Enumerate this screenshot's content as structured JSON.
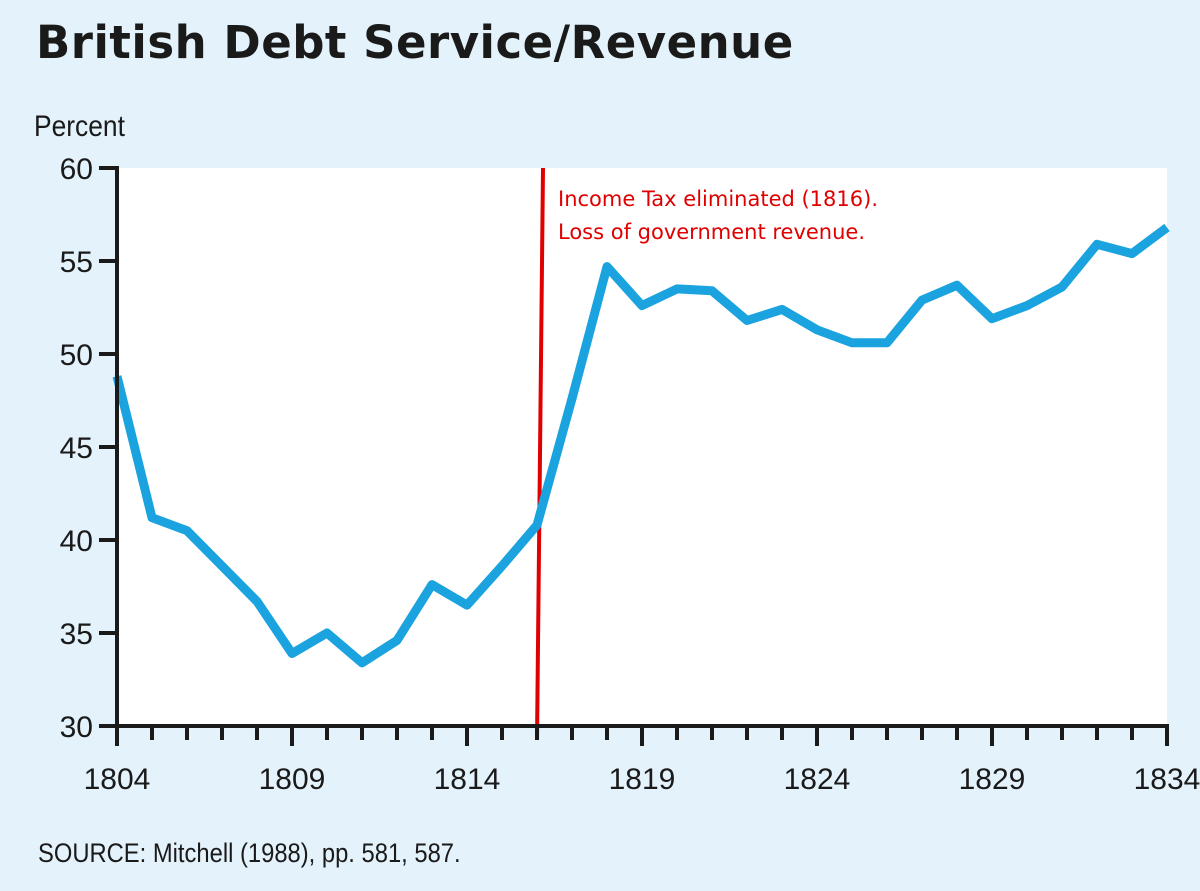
{
  "chart_data": {
    "type": "line",
    "title": "British Debt Service/Revenue",
    "ylabel": "Percent",
    "xlabel": "",
    "xlim": [
      1804,
      1834
    ],
    "ylim": [
      30,
      60
    ],
    "x_ticks": [
      1804,
      1809,
      1814,
      1819,
      1824,
      1829,
      1834
    ],
    "y_ticks": [
      30,
      35,
      40,
      45,
      50,
      55,
      60
    ],
    "grid": false,
    "series": [
      {
        "color": "#1aa3de",
        "x": [
          1804,
          1805,
          1806,
          1807,
          1808,
          1809,
          1810,
          1811,
          1812,
          1813,
          1814,
          1815,
          1816,
          1817,
          1818,
          1819,
          1820,
          1821,
          1822,
          1823,
          1824,
          1825,
          1826,
          1827,
          1828,
          1829,
          1830,
          1831,
          1832,
          1833,
          1834
        ],
        "values": [
          48.8,
          41.2,
          40.5,
          38.6,
          36.7,
          33.9,
          35.0,
          33.4,
          34.6,
          37.6,
          36.5,
          38.6,
          40.8,
          47.6,
          54.7,
          52.6,
          53.5,
          53.4,
          51.8,
          52.4,
          51.3,
          50.6,
          50.6,
          52.9,
          53.7,
          51.9,
          52.6,
          53.6,
          55.9,
          55.4,
          56.8
        ]
      }
    ],
    "annotation": {
      "x": 1816,
      "color": "#e00000",
      "lines": [
        "Income Tax eliminated (1816).",
        "Loss of government revenue."
      ]
    },
    "source": "SOURCE: Mitchell (1988), pp. 581, 587."
  }
}
